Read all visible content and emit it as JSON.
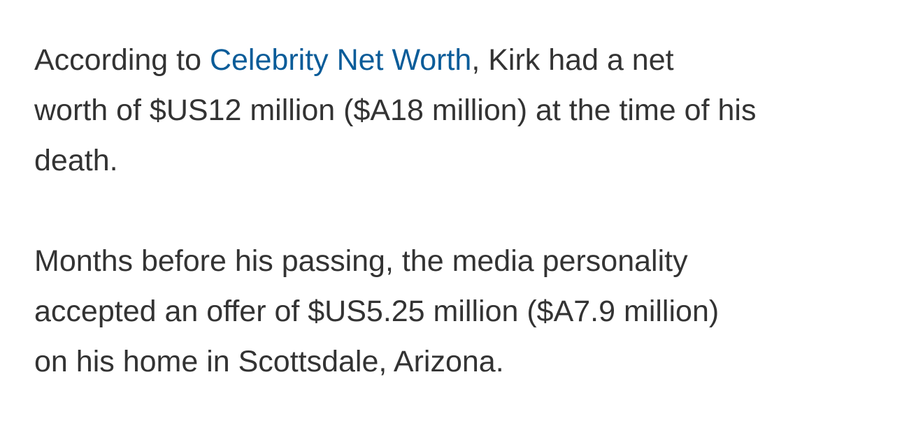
{
  "paragraphs": [
    {
      "lines": [
        {
          "parts": [
            {
              "text": "According to "
            },
            {
              "text": "Celebrity Net Worth",
              "link": true
            },
            {
              "text": ", Kirk had a net"
            }
          ]
        },
        {
          "parts": [
            {
              "text": "worth of $US12 million ($A18 million) at the time of his"
            }
          ]
        },
        {
          "parts": [
            {
              "text": "death."
            }
          ]
        }
      ]
    },
    {
      "lines": [
        {
          "parts": [
            {
              "text": "Months before his passing, the media personality"
            }
          ]
        },
        {
          "parts": [
            {
              "text": "accepted an offer of $US5.25 million ($A7.9 million)"
            }
          ]
        },
        {
          "parts": [
            {
              "text": "on his home in Scottsdale, Arizona."
            }
          ]
        }
      ]
    }
  ]
}
